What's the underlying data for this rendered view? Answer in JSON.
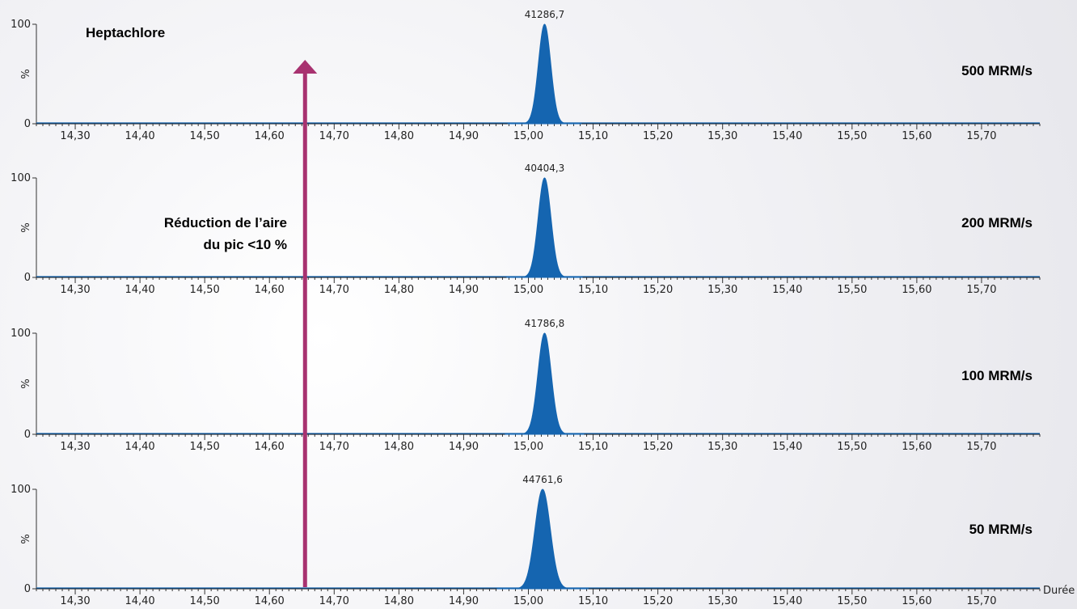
{
  "chart_data": {
    "type": "line",
    "compound_label": "Heptachlore",
    "annotation": {
      "text_line1": "Réduction de l’aire",
      "text_line2": "du pic <10 %",
      "x": 14.655,
      "color": "#a83270"
    },
    "x_axis_label": "Durée",
    "xlim": [
      14.24,
      15.79
    ],
    "x_ticks": [
      "14,30",
      "14,40",
      "14,50",
      "14,60",
      "14,70",
      "14,80",
      "14,90",
      "15,00",
      "15,10",
      "15,20",
      "15,30",
      "15,40",
      "15,50",
      "15,60",
      "15,70"
    ],
    "y_ticks": [
      "0",
      "%",
      "100"
    ],
    "ylim": [
      0,
      100
    ],
    "fill_color": "#1565b0",
    "series": [
      {
        "name": "500 MRM/s",
        "peak_label": "41286,7",
        "peak_x": 15.025,
        "peak_y": 100,
        "sigma": 0.0095
      },
      {
        "name": "200 MRM/s",
        "peak_label": "40404,3",
        "peak_x": 15.025,
        "peak_y": 100,
        "sigma": 0.0098
      },
      {
        "name": "100 MRM/s",
        "peak_label": "41786,8",
        "peak_x": 15.025,
        "peak_y": 100,
        "sigma": 0.0102
      },
      {
        "name": "50 MRM/s",
        "peak_label": "44761,6",
        "peak_x": 15.022,
        "peak_y": 100,
        "sigma": 0.0118
      }
    ]
  }
}
